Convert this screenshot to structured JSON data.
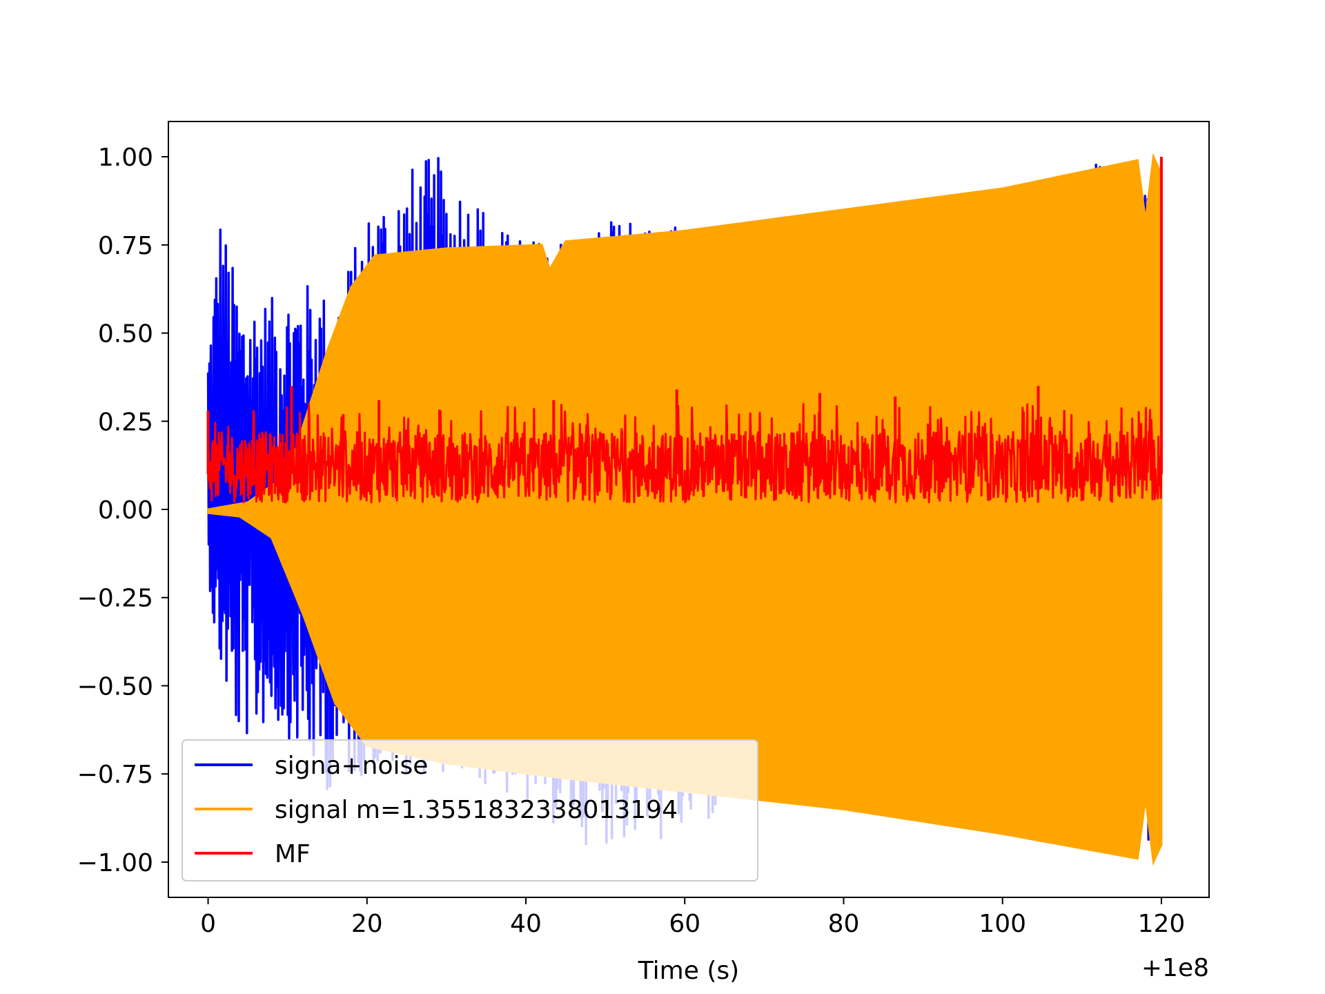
{
  "chart_data": {
    "type": "line",
    "title": "",
    "xlabel": "Time (s)",
    "ylabel": "",
    "x_offset_label": "+1e8",
    "xlim": [
      -5,
      126
    ],
    "ylim": [
      -1.1,
      1.1
    ],
    "x_ticks": [
      0,
      20,
      40,
      60,
      80,
      100,
      120
    ],
    "x_tick_labels": [
      "0",
      "20",
      "40",
      "60",
      "80",
      "100",
      "120"
    ],
    "y_ticks": [
      1.0,
      0.75,
      0.5,
      0.25,
      0.0,
      -0.25,
      -0.5,
      -0.75,
      -1.0
    ],
    "y_tick_labels": [
      "1.00",
      "0.75",
      "0.50",
      "0.25",
      "0.00",
      "−0.25",
      "−0.50",
      "−0.75",
      "−1.00"
    ],
    "grid": false,
    "legend_position": "lower-left",
    "series": [
      {
        "name": "signa+noise",
        "color": "#0000ff",
        "upper_envelope": [
          [
            0,
            0.49
          ],
          [
            1.5,
            0.86
          ],
          [
            4,
            0.6
          ],
          [
            8,
            0.6
          ],
          [
            12,
            0.65
          ],
          [
            16,
            0.6
          ],
          [
            21,
            0.9
          ],
          [
            27,
            1.0
          ],
          [
            30,
            1.0
          ],
          [
            34,
            0.9
          ],
          [
            37,
            0.8
          ],
          [
            40,
            0.77
          ],
          [
            51,
            0.82
          ],
          [
            62,
            0.81
          ],
          [
            70,
            0.8
          ],
          [
            80,
            0.85
          ],
          [
            100,
            0.93
          ],
          [
            110,
            0.99
          ],
          [
            118,
            0.97
          ],
          [
            120,
            1.0
          ]
        ],
        "lower_envelope": [
          [
            0,
            -0.17
          ],
          [
            1,
            -0.41
          ],
          [
            4,
            -0.67
          ],
          [
            8,
            -0.6
          ],
          [
            11,
            -0.67
          ],
          [
            15,
            -0.8
          ],
          [
            20,
            -0.75
          ],
          [
            30,
            -0.75
          ],
          [
            38,
            -0.82
          ],
          [
            47,
            -0.95
          ],
          [
            59,
            -0.95
          ],
          [
            70,
            -0.83
          ],
          [
            87,
            -0.87
          ],
          [
            100,
            -0.9
          ],
          [
            118,
            -1.0
          ],
          [
            120,
            -1.0
          ]
        ]
      },
      {
        "name": "signal m=1.3551832338013194",
        "color": "#ffa500",
        "upper_envelope": [
          [
            0,
            0.0
          ],
          [
            5,
            0.02
          ],
          [
            10,
            0.1
          ],
          [
            15,
            0.45
          ],
          [
            18,
            0.63
          ],
          [
            21,
            0.72
          ],
          [
            30,
            0.74
          ],
          [
            42,
            0.75
          ],
          [
            43,
            0.68
          ],
          [
            45,
            0.76
          ],
          [
            60,
            0.79
          ],
          [
            80,
            0.85
          ],
          [
            100,
            0.91
          ],
          [
            117,
            0.99
          ],
          [
            118,
            0.82
          ],
          [
            119,
            1.0
          ],
          [
            120,
            0.95
          ]
        ],
        "lower_envelope": [
          [
            0,
            -0.01
          ],
          [
            4,
            -0.02
          ],
          [
            8,
            -0.08
          ],
          [
            12,
            -0.3
          ],
          [
            16,
            -0.55
          ],
          [
            20,
            -0.67
          ],
          [
            30,
            -0.72
          ],
          [
            44,
            -0.76
          ],
          [
            60,
            -0.8
          ],
          [
            80,
            -0.85
          ],
          [
            100,
            -0.92
          ],
          [
            117,
            -0.99
          ],
          [
            118,
            -0.82
          ],
          [
            119,
            -1.0
          ],
          [
            120,
            -0.95
          ]
        ]
      },
      {
        "name": "MF",
        "color": "#ff0000",
        "baseline": 0.1,
        "band": [
          0.02,
          0.22
        ],
        "peaks": [
          [
            0,
            0.28
          ],
          [
            10.5,
            0.35
          ],
          [
            17,
            0.27
          ],
          [
            21.5,
            0.31
          ],
          [
            43.5,
            0.31
          ],
          [
            59,
            0.34
          ],
          [
            77,
            0.33
          ],
          [
            86.5,
            0.32
          ],
          [
            104.5,
            0.35
          ],
          [
            120,
            1.0
          ]
        ]
      }
    ]
  }
}
